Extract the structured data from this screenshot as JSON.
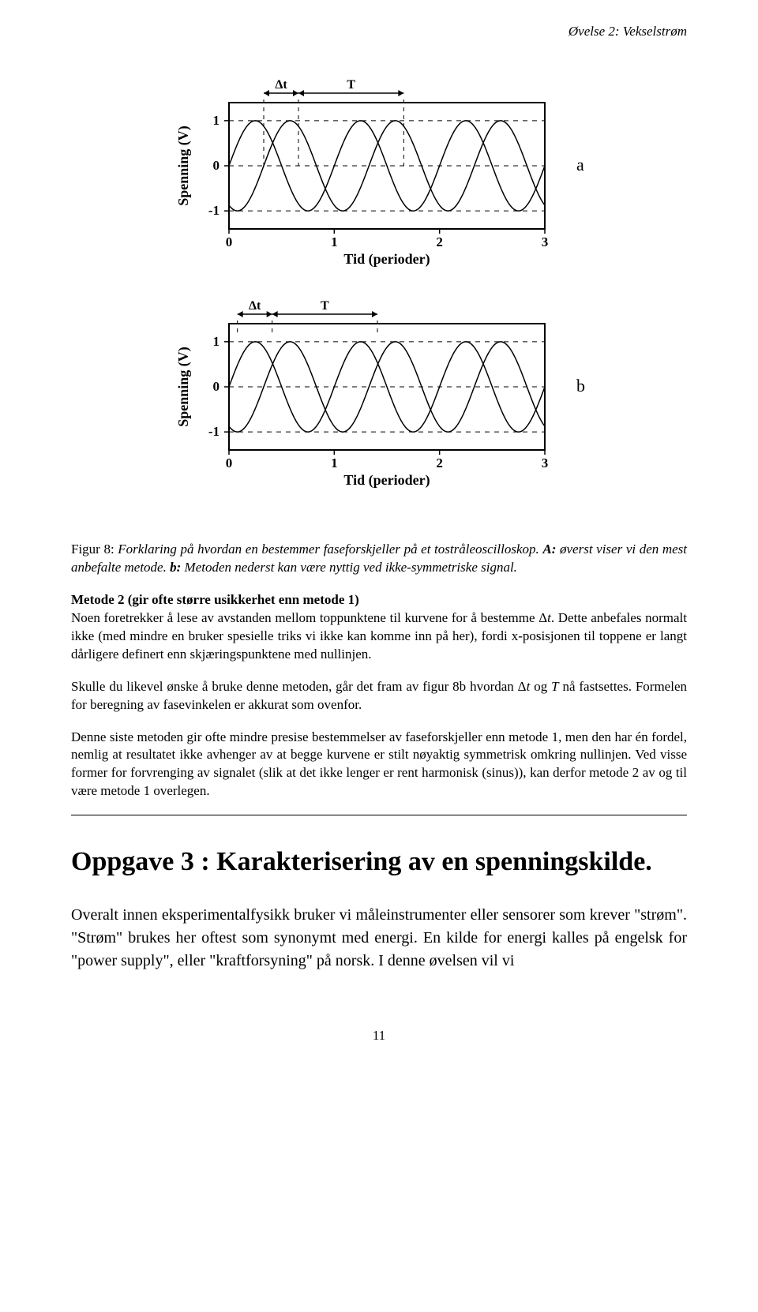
{
  "header": "Øvelse 2: Vekselstrøm",
  "figure": {
    "charts": [
      {
        "letter": "a",
        "ylabel": "Spenning (V)",
        "xlabel": "Tid (perioder)",
        "xlim": [
          0,
          3
        ],
        "ylim": [
          -1.4,
          1.4
        ],
        "xticks": [
          0,
          1,
          2,
          3
        ],
        "yticks": [
          -1,
          0,
          1
        ],
        "phase_shift_periods": 0.33,
        "markers": {
          "dt_label": "Δt",
          "T_label": "T",
          "dt_from": 0.33,
          "dt_to": 0.66,
          "T_from": 0.66,
          "T_to": 1.66,
          "show_vertical_dash": true
        },
        "stroke": "#000000",
        "linewidth": 1.5,
        "background": "#ffffff"
      },
      {
        "letter": "b",
        "ylabel": "Spenning (V)",
        "xlabel": "Tid (perioder)",
        "xlim": [
          0,
          3
        ],
        "ylim": [
          -1.4,
          1.4
        ],
        "xticks": [
          0,
          1,
          2,
          3
        ],
        "yticks": [
          -1,
          0,
          1
        ],
        "phase_shift_periods": 0.33,
        "markers": {
          "dt_label": "Δt",
          "T_label": "T",
          "dt_from": 0.08,
          "dt_to": 0.41,
          "T_from": 0.41,
          "T_to": 1.41,
          "show_vertical_dash": false
        },
        "stroke": "#000000",
        "linewidth": 1.5,
        "background": "#ffffff"
      }
    ]
  },
  "caption_intro": "Figur 8: ",
  "caption_italic": "Forklaring på hvordan en bestemmer faseforskjeller på et tostråleoscilloskop. ",
  "caption_a_lead": "A: ",
  "caption_a_rest": "øverst viser vi den mest anbefalte metode. ",
  "caption_b_lead": "b: ",
  "caption_b_rest": "Metoden nederst kan være nyttig ved ikke-symmetriske signal.",
  "p1_lead": "Metode 2 (gir ofte større usikkerhet enn metode 1)",
  "p1_rest1": "Noen foretrekker å lese av avstanden mellom toppunktene til kurvene for å bestemme Δ",
  "p1_t": "t",
  "p1_rest2": ". Dette anbefales normalt ikke (med mindre en bruker spesielle triks vi ikke kan komme inn på her), fordi x-posisjonen til toppene er langt dårligere definert enn skjæringspunktene med nullinjen.",
  "p2_a": "Skulle du likevel ønske å bruke denne metoden, går det fram av figur 8b hvordan Δ",
  "p2_t": "t",
  "p2_b": " og ",
  "p2_T": "T",
  "p2_c": " nå fastsettes. Formelen for beregning av fasevinkelen er akkurat som ovenfor.",
  "p3": "Denne siste metoden gir ofte mindre presise bestemmelser av faseforskjeller enn metode 1, men den har én fordel, nemlig at resultatet ikke avhenger av at begge kurvene er stilt nøyaktig symmetrisk omkring nullinjen. Ved visse former for forvrenging av signalet (slik at det ikke lenger er rent harmonisk (sinus)), kan derfor metode 2 av og til være metode 1 overlegen.",
  "task_heading": "Oppgave 3 : Karakterisering av en spenningskilde.",
  "p4": "Overalt innen eksperimentalfysikk bruker vi måleinstrumenter eller sensorer som krever \"strøm\". \"Strøm\" brukes her oftest som synonymt med energi. En kilde for energi kalles på engelsk for \"power supply\", eller \"kraftforsyning\" på norsk. I denne øvelsen vil vi",
  "page_number": "11"
}
